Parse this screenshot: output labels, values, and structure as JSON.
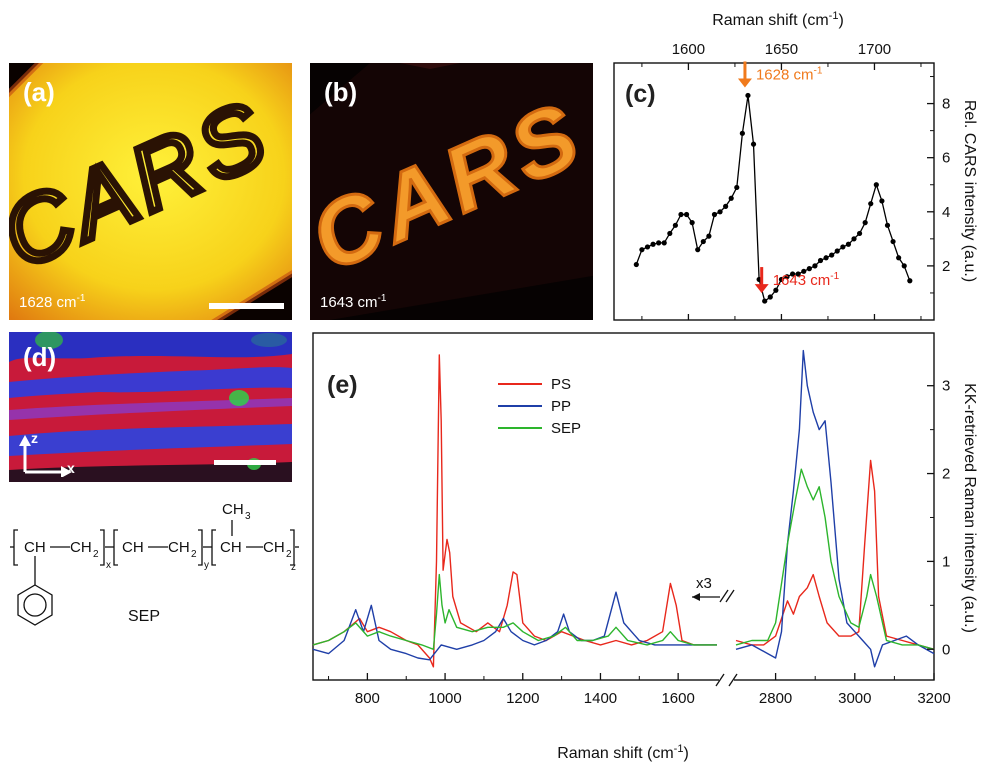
{
  "panels": {
    "a": {
      "label": "(a)",
      "wavenumber_value": "1628 cm",
      "wavenumber_exp": "-1",
      "text": "CARS"
    },
    "b": {
      "label": "(b)",
      "wavenumber_value": "1643 cm",
      "wavenumber_exp": "-1",
      "text": "CARS"
    },
    "d": {
      "label": "(d)",
      "axis_z": "z",
      "axis_x": "x"
    },
    "chem": {
      "name": "SEP",
      "ch3": "CH",
      "ch3_sub": "3",
      "sub_x": "x",
      "sub_y": "y",
      "sub_z": "z"
    }
  },
  "colors": {
    "PS": "#e8281c",
    "PP": "#1f3fa8",
    "SEP": "#2db52d",
    "annotation": "#f07a1c",
    "black_trace": "#000000"
  },
  "chart_data": [
    {
      "panel": "(c)",
      "type": "line",
      "xlabel_value": "Raman shift (cm",
      "xlabel_exp": "-1",
      "xlabel_close": ")",
      "ylabel": "Rel. CARS intensity (a.u.)",
      "x_axis_position": "top",
      "xlim": [
        1560,
        1732
      ],
      "ylim": [
        0,
        9.5
      ],
      "xticks": [
        1600,
        1650,
        1700
      ],
      "yticks": [
        2,
        4,
        6,
        8
      ],
      "series": [
        {
          "points": [
            [
              1572,
              2.05
            ],
            [
              1575,
              2.6
            ],
            [
              1578,
              2.7
            ],
            [
              1581,
              2.8
            ],
            [
              1584,
              2.85
            ],
            [
              1587,
              2.85
            ],
            [
              1590,
              3.2
            ],
            [
              1593,
              3.5
            ],
            [
              1596,
              3.9
            ],
            [
              1599,
              3.9
            ],
            [
              1602,
              3.6
            ],
            [
              1605,
              2.6
            ],
            [
              1608,
              2.9
            ],
            [
              1611,
              3.1
            ],
            [
              1614,
              3.9
            ],
            [
              1617,
              4.0
            ],
            [
              1620,
              4.2
            ],
            [
              1623,
              4.5
            ],
            [
              1626,
              4.9
            ],
            [
              1629,
              6.9
            ],
            [
              1632,
              8.3
            ],
            [
              1635,
              6.5
            ],
            [
              1638,
              1.5
            ],
            [
              1641,
              0.7
            ],
            [
              1644,
              0.85
            ],
            [
              1647,
              1.1
            ],
            [
              1650,
              1.5
            ],
            [
              1653,
              1.6
            ],
            [
              1656,
              1.7
            ],
            [
              1659,
              1.7
            ],
            [
              1662,
              1.8
            ],
            [
              1665,
              1.9
            ],
            [
              1668,
              2.0
            ],
            [
              1671,
              2.2
            ],
            [
              1674,
              2.3
            ],
            [
              1677,
              2.4
            ],
            [
              1680,
              2.55
            ],
            [
              1683,
              2.7
            ],
            [
              1686,
              2.8
            ],
            [
              1689,
              3.0
            ],
            [
              1692,
              3.2
            ],
            [
              1695,
              3.6
            ],
            [
              1698,
              4.3
            ],
            [
              1701,
              5.0
            ],
            [
              1704,
              4.4
            ],
            [
              1707,
              3.5
            ],
            [
              1710,
              2.9
            ],
            [
              1713,
              2.3
            ],
            [
              1716,
              2.0
            ],
            [
              1719,
              1.45
            ]
          ]
        }
      ],
      "annotations": [
        {
          "value": "1628 cm",
          "exp": "-1",
          "x": 1632,
          "y": 8.3,
          "color_key": "annotation"
        },
        {
          "value": "1643 cm",
          "exp": "-1",
          "x": 1641,
          "y": 0.7,
          "color_key": "PS"
        }
      ]
    },
    {
      "panel": "(e)",
      "type": "line",
      "xlabel_value": "Raman shift (cm",
      "xlabel_exp": "-1",
      "xlabel_close": ")",
      "ylabel": "KK-retrieved Raman intensity (a.u.)",
      "x_axis_position": "bottom",
      "broken_x_axis": true,
      "segment1_xlim": [
        660,
        1700
      ],
      "segment2_xlim": [
        2700,
        3200
      ],
      "xticks_segment1": [
        800,
        1000,
        1200,
        1400,
        1600
      ],
      "xticks_segment2": [
        2800,
        3000,
        3200
      ],
      "ylim": [
        -0.35,
        3.6
      ],
      "yticks": [
        0,
        1,
        2,
        3
      ],
      "magnification_label": "x3",
      "grid": false,
      "legend_position": "top-left",
      "series": [
        {
          "name": "PS",
          "points": [
            [
              660,
              0.05
            ],
            [
              700,
              0.1
            ],
            [
              740,
              0.2
            ],
            [
              780,
              0.35
            ],
            [
              800,
              0.2
            ],
            [
              830,
              0.25
            ],
            [
              860,
              0.2
            ],
            [
              900,
              0.1
            ],
            [
              930,
              0.05
            ],
            [
              960,
              -0.1
            ],
            [
              970,
              -0.2
            ],
            [
              978,
              1.0
            ],
            [
              985,
              3.35
            ],
            [
              990,
              2.6
            ],
            [
              995,
              0.9
            ],
            [
              1005,
              1.25
            ],
            [
              1012,
              1.1
            ],
            [
              1020,
              0.6
            ],
            [
              1040,
              0.3
            ],
            [
              1080,
              0.2
            ],
            [
              1110,
              0.3
            ],
            [
              1140,
              0.2
            ],
            [
              1160,
              0.5
            ],
            [
              1175,
              0.88
            ],
            [
              1185,
              0.85
            ],
            [
              1200,
              0.3
            ],
            [
              1230,
              0.15
            ],
            [
              1260,
              0.1
            ],
            [
              1300,
              0.2
            ],
            [
              1330,
              0.15
            ],
            [
              1360,
              0.1
            ],
            [
              1400,
              0.05
            ],
            [
              1440,
              0.1
            ],
            [
              1480,
              0.05
            ],
            [
              1520,
              0.1
            ],
            [
              1560,
              0.2
            ],
            [
              1580,
              0.75
            ],
            [
              1595,
              0.5
            ],
            [
              1610,
              0.1
            ],
            [
              1640,
              0.05
            ],
            [
              1670,
              0.05
            ],
            [
              1700,
              0.05
            ],
            null,
            [
              2700,
              0.1
            ],
            [
              2740,
              0.05
            ],
            [
              2770,
              0.05
            ],
            [
              2800,
              0.15
            ],
            [
              2830,
              0.55
            ],
            [
              2845,
              0.4
            ],
            [
              2860,
              0.6
            ],
            [
              2880,
              0.7
            ],
            [
              2895,
              0.85
            ],
            [
              2910,
              0.6
            ],
            [
              2930,
              0.3
            ],
            [
              2960,
              0.15
            ],
            [
              2990,
              0.15
            ],
            [
              3010,
              0.2
            ],
            [
              3025,
              1.2
            ],
            [
              3040,
              2.15
            ],
            [
              3050,
              1.8
            ],
            [
              3060,
              0.6
            ],
            [
              3080,
              0.15
            ],
            [
              3120,
              0.1
            ],
            [
              3160,
              0.05
            ],
            [
              3200,
              0.0
            ]
          ]
        },
        {
          "name": "PP",
          "points": [
            [
              660,
              0.0
            ],
            [
              700,
              -0.05
            ],
            [
              740,
              0.1
            ],
            [
              770,
              0.45
            ],
            [
              790,
              0.2
            ],
            [
              810,
              0.5
            ],
            [
              830,
              0.1
            ],
            [
              860,
              0.0
            ],
            [
              900,
              -0.05
            ],
            [
              930,
              -0.1
            ],
            [
              960,
              -0.12
            ],
            [
              990,
              0.05
            ],
            [
              1030,
              0.0
            ],
            [
              1070,
              0.05
            ],
            [
              1100,
              0.1
            ],
            [
              1130,
              0.2
            ],
            [
              1150,
              0.35
            ],
            [
              1170,
              0.2
            ],
            [
              1200,
              0.1
            ],
            [
              1230,
              0.05
            ],
            [
              1260,
              0.1
            ],
            [
              1290,
              0.2
            ],
            [
              1305,
              0.4
            ],
            [
              1320,
              0.2
            ],
            [
              1350,
              0.1
            ],
            [
              1380,
              0.1
            ],
            [
              1410,
              0.15
            ],
            [
              1440,
              0.65
            ],
            [
              1460,
              0.3
            ],
            [
              1500,
              0.1
            ],
            [
              1540,
              0.05
            ],
            [
              1580,
              0.05
            ],
            [
              1620,
              0.05
            ],
            [
              1660,
              0.05
            ],
            [
              1700,
              0.05
            ],
            null,
            [
              2700,
              0.0
            ],
            [
              2740,
              0.05
            ],
            [
              2780,
              -0.05
            ],
            [
              2800,
              -0.1
            ],
            [
              2815,
              0.2
            ],
            [
              2830,
              1.2
            ],
            [
              2845,
              1.8
            ],
            [
              2860,
              2.5
            ],
            [
              2870,
              3.4
            ],
            [
              2880,
              3.0
            ],
            [
              2895,
              2.7
            ],
            [
              2910,
              2.5
            ],
            [
              2925,
              2.6
            ],
            [
              2940,
              1.9
            ],
            [
              2960,
              0.8
            ],
            [
              2980,
              0.3
            ],
            [
              3000,
              0.2
            ],
            [
              3020,
              0.1
            ],
            [
              3040,
              0.0
            ],
            [
              3050,
              -0.2
            ],
            [
              3070,
              0.05
            ],
            [
              3100,
              0.1
            ],
            [
              3130,
              0.15
            ],
            [
              3160,
              0.05
            ],
            [
              3200,
              -0.05
            ]
          ]
        },
        {
          "name": "SEP",
          "points": [
            [
              660,
              0.05
            ],
            [
              700,
              0.1
            ],
            [
              740,
              0.2
            ],
            [
              770,
              0.3
            ],
            [
              800,
              0.15
            ],
            [
              830,
              0.2
            ],
            [
              860,
              0.15
            ],
            [
              900,
              0.1
            ],
            [
              940,
              0.05
            ],
            [
              970,
              0.0
            ],
            [
              978,
              0.4
            ],
            [
              985,
              0.85
            ],
            [
              992,
              0.5
            ],
            [
              1000,
              0.3
            ],
            [
              1010,
              0.45
            ],
            [
              1030,
              0.25
            ],
            [
              1070,
              0.2
            ],
            [
              1110,
              0.25
            ],
            [
              1150,
              0.25
            ],
            [
              1175,
              0.3
            ],
            [
              1200,
              0.2
            ],
            [
              1240,
              0.1
            ],
            [
              1280,
              0.15
            ],
            [
              1310,
              0.25
            ],
            [
              1340,
              0.1
            ],
            [
              1380,
              0.1
            ],
            [
              1420,
              0.15
            ],
            [
              1440,
              0.25
            ],
            [
              1470,
              0.1
            ],
            [
              1520,
              0.05
            ],
            [
              1560,
              0.1
            ],
            [
              1580,
              0.2
            ],
            [
              1600,
              0.1
            ],
            [
              1640,
              0.05
            ],
            [
              1700,
              0.05
            ],
            null,
            [
              2700,
              0.05
            ],
            [
              2740,
              0.1
            ],
            [
              2780,
              0.1
            ],
            [
              2800,
              0.3
            ],
            [
              2830,
              1.2
            ],
            [
              2850,
              1.7
            ],
            [
              2865,
              2.05
            ],
            [
              2880,
              1.85
            ],
            [
              2895,
              1.7
            ],
            [
              2910,
              1.85
            ],
            [
              2925,
              1.5
            ],
            [
              2940,
              1.0
            ],
            [
              2960,
              0.6
            ],
            [
              2990,
              0.3
            ],
            [
              3010,
              0.25
            ],
            [
              3030,
              0.6
            ],
            [
              3040,
              0.85
            ],
            [
              3055,
              0.6
            ],
            [
              3080,
              0.1
            ],
            [
              3120,
              0.05
            ],
            [
              3160,
              0.05
            ],
            [
              3200,
              0.0
            ]
          ]
        }
      ]
    }
  ]
}
